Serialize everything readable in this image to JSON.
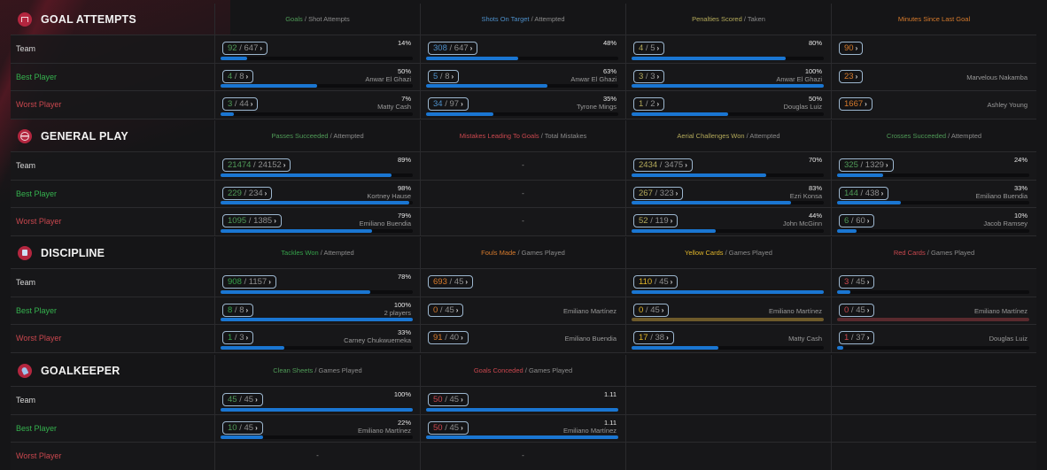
{
  "colors": {
    "team_label": "#d8d8d8",
    "best_label": "#35b24e",
    "worst_label": "#c9474e",
    "bar_fill": "#1a76d2",
    "pill_border": "#9db7cf",
    "section_icon": "#b3263f",
    "green_metric": "#4f9a57",
    "blue_metric": "#4d8fc9",
    "olive_metric": "#b3a95a",
    "orange_metric": "#d67a2c",
    "red_metric": "#c9474e",
    "yellow_metric": "#e0b52a",
    "yellow_empty_bar": "#6e5a2a",
    "red_empty_bar": "#5a2a2e"
  },
  "row_labels": {
    "team": "Team",
    "best": "Best Player",
    "worst": "Worst Player"
  },
  "sections": [
    {
      "title": "GOAL ATTEMPTS",
      "icon": "goalpost-icon",
      "columns": [
        {
          "key": "Goals",
          "rest": " / Shot Attempts",
          "color": "#4f9a57",
          "rows": [
            {
              "num": "92",
              "den": "647",
              "pct": "14%",
              "player": "",
              "fill": 0.14
            },
            {
              "num": "4",
              "den": "8",
              "pct": "50%",
              "player": "Anwar El Ghazi",
              "fill": 0.5
            },
            {
              "num": "3",
              "den": "44",
              "pct": "7%",
              "player": "Matty Cash",
              "fill": 0.07
            }
          ]
        },
        {
          "key": "Shots On Target",
          "rest": " / Attempted",
          "color": "#4d8fc9",
          "rows": [
            {
              "num": "308",
              "den": "647",
              "pct": "48%",
              "player": "",
              "fill": 0.48
            },
            {
              "num": "5",
              "den": "8",
              "pct": "63%",
              "player": "Anwar El Ghazi",
              "fill": 0.63
            },
            {
              "num": "34",
              "den": "97",
              "pct": "35%",
              "player": "Tyrone Mings",
              "fill": 0.35
            }
          ]
        },
        {
          "key": "Penalties Scored",
          "rest": " / Taken",
          "color": "#b3a95a",
          "rows": [
            {
              "num": "4",
              "den": "5",
              "pct": "80%",
              "player": "",
              "fill": 0.8
            },
            {
              "num": "3",
              "den": "3",
              "pct": "100%",
              "player": "Anwar El Ghazi",
              "fill": 1.0
            },
            {
              "num": "1",
              "den": "2",
              "pct": "50%",
              "player": "Douglas Luiz",
              "fill": 0.5
            }
          ]
        },
        {
          "key": "Minutes Since Last Goal",
          "rest": "",
          "color": "#d67a2c",
          "single": true,
          "rows": [
            {
              "num": "90",
              "player": ""
            },
            {
              "num": "23",
              "player": "Marvelous Nakamba"
            },
            {
              "num": "1667",
              "player": "Ashley Young"
            }
          ]
        }
      ]
    },
    {
      "title": "GENERAL PLAY",
      "icon": "ball-icon",
      "columns": [
        {
          "key": "Passes Succeeded",
          "rest": " / Attempted",
          "color": "#4f9a57",
          "rows": [
            {
              "num": "21474",
              "den": "24152",
              "pct": "89%",
              "player": "",
              "fill": 0.89
            },
            {
              "num": "229",
              "den": "234",
              "pct": "98%",
              "player": "Kortney Hause",
              "fill": 0.98
            },
            {
              "num": "1095",
              "den": "1385",
              "pct": "79%",
              "player": "Emiliano Buendia",
              "fill": 0.79
            }
          ]
        },
        {
          "key": "Mistakes Leading To Goals",
          "rest": " / Total Mistakes",
          "color": "#c9474e",
          "empty": true,
          "rows": [
            {
              "dash": "-"
            },
            {
              "dash": "-"
            },
            {
              "dash": "-"
            }
          ]
        },
        {
          "key": "Aerial Challenges Won",
          "rest": " / Attempted",
          "color": "#b3a95a",
          "rows": [
            {
              "num": "2434",
              "den": "3475",
              "pct": "70%",
              "player": "",
              "fill": 0.7
            },
            {
              "num": "267",
              "den": "323",
              "pct": "83%",
              "player": "Ezri Konsa",
              "fill": 0.83
            },
            {
              "num": "52",
              "den": "119",
              "pct": "44%",
              "player": "John McGinn",
              "fill": 0.44
            }
          ]
        },
        {
          "key": "Crosses Succeeded",
          "rest": " / Attempted",
          "color": "#4f9a57",
          "rows": [
            {
              "num": "325",
              "den": "1329",
              "pct": "24%",
              "player": "",
              "fill": 0.24
            },
            {
              "num": "144",
              "den": "438",
              "pct": "33%",
              "player": "Emiliano Buendia",
              "fill": 0.33
            },
            {
              "num": "6",
              "den": "60",
              "pct": "10%",
              "player": "Jacob Ramsey",
              "fill": 0.1
            }
          ]
        }
      ]
    },
    {
      "title": "DISCIPLINE",
      "icon": "card-icon",
      "columns": [
        {
          "key": "Tackles Won",
          "rest": " / Attempted",
          "color": "#35a24a",
          "rows": [
            {
              "num": "908",
              "den": "1157",
              "pct": "78%",
              "player": "",
              "fill": 0.78
            },
            {
              "num": "8",
              "den": "8",
              "pct": "100%",
              "player": "2 players",
              "fill": 1.0
            },
            {
              "num": "1",
              "den": "3",
              "pct": "33%",
              "player": "Carney Chukwuemeka",
              "fill": 0.33
            }
          ]
        },
        {
          "key": "Fouls Made",
          "rest": " / Games Played",
          "color": "#d67a2c",
          "nobar": true,
          "rows": [
            {
              "num": "693",
              "den": "45",
              "pct": "",
              "player": ""
            },
            {
              "num": "0",
              "den": "45",
              "pct": "",
              "player": "Emiliano Martínez"
            },
            {
              "num": "91",
              "den": "40",
              "pct": "",
              "player": "Emiliano Buendia"
            }
          ]
        },
        {
          "key": "Yellow Cards",
          "rest": " / Games Played",
          "color": "#e0b52a",
          "rows": [
            {
              "num": "110",
              "den": "45",
              "pct": "",
              "player": "",
              "fill": 1.0
            },
            {
              "num": "0",
              "den": "45",
              "pct": "",
              "player": "Emiliano Martínez",
              "fill": 1.0,
              "bar": "#6e5a2a"
            },
            {
              "num": "17",
              "den": "38",
              "pct": "",
              "player": "Matty Cash",
              "fill": 0.45
            }
          ]
        },
        {
          "key": "Red Cards",
          "rest": " / Games Played",
          "color": "#c9474e",
          "rows": [
            {
              "num": "3",
              "den": "45",
              "pct": "",
              "player": "",
              "fill": 0.07
            },
            {
              "num": "0",
              "den": "45",
              "pct": "",
              "player": "Emiliano Martínez",
              "fill": 1.0,
              "bar": "#5a2a2e"
            },
            {
              "num": "1",
              "den": "37",
              "pct": "",
              "player": "Douglas Luiz",
              "fill": 0.03
            }
          ]
        }
      ]
    },
    {
      "title": "GOALKEEPER",
      "icon": "glove-icon",
      "columns": [
        {
          "key": "Clean Sheets",
          "rest": " / Games Played",
          "color": "#4f9a57",
          "rows": [
            {
              "num": "45",
              "den": "45",
              "pct": "100%",
              "player": "",
              "fill": 1.0
            },
            {
              "num": "10",
              "den": "45",
              "pct": "22%",
              "player": "Emiliano Martínez",
              "fill": 0.22
            },
            {
              "dash": "-"
            }
          ]
        },
        {
          "key": "Goals Conceded",
          "rest": " / Games Played",
          "color": "#c9474e",
          "rows": [
            {
              "num": "50",
              "den": "45",
              "pct": "1.11",
              "player": "",
              "fill": 1.0
            },
            {
              "num": "50",
              "den": "45",
              "pct": "1.11",
              "player": "Emiliano Martínez",
              "fill": 1.0
            },
            {
              "dash": "-"
            }
          ]
        },
        {
          "blank": true
        },
        {
          "blank": true
        }
      ]
    }
  ]
}
